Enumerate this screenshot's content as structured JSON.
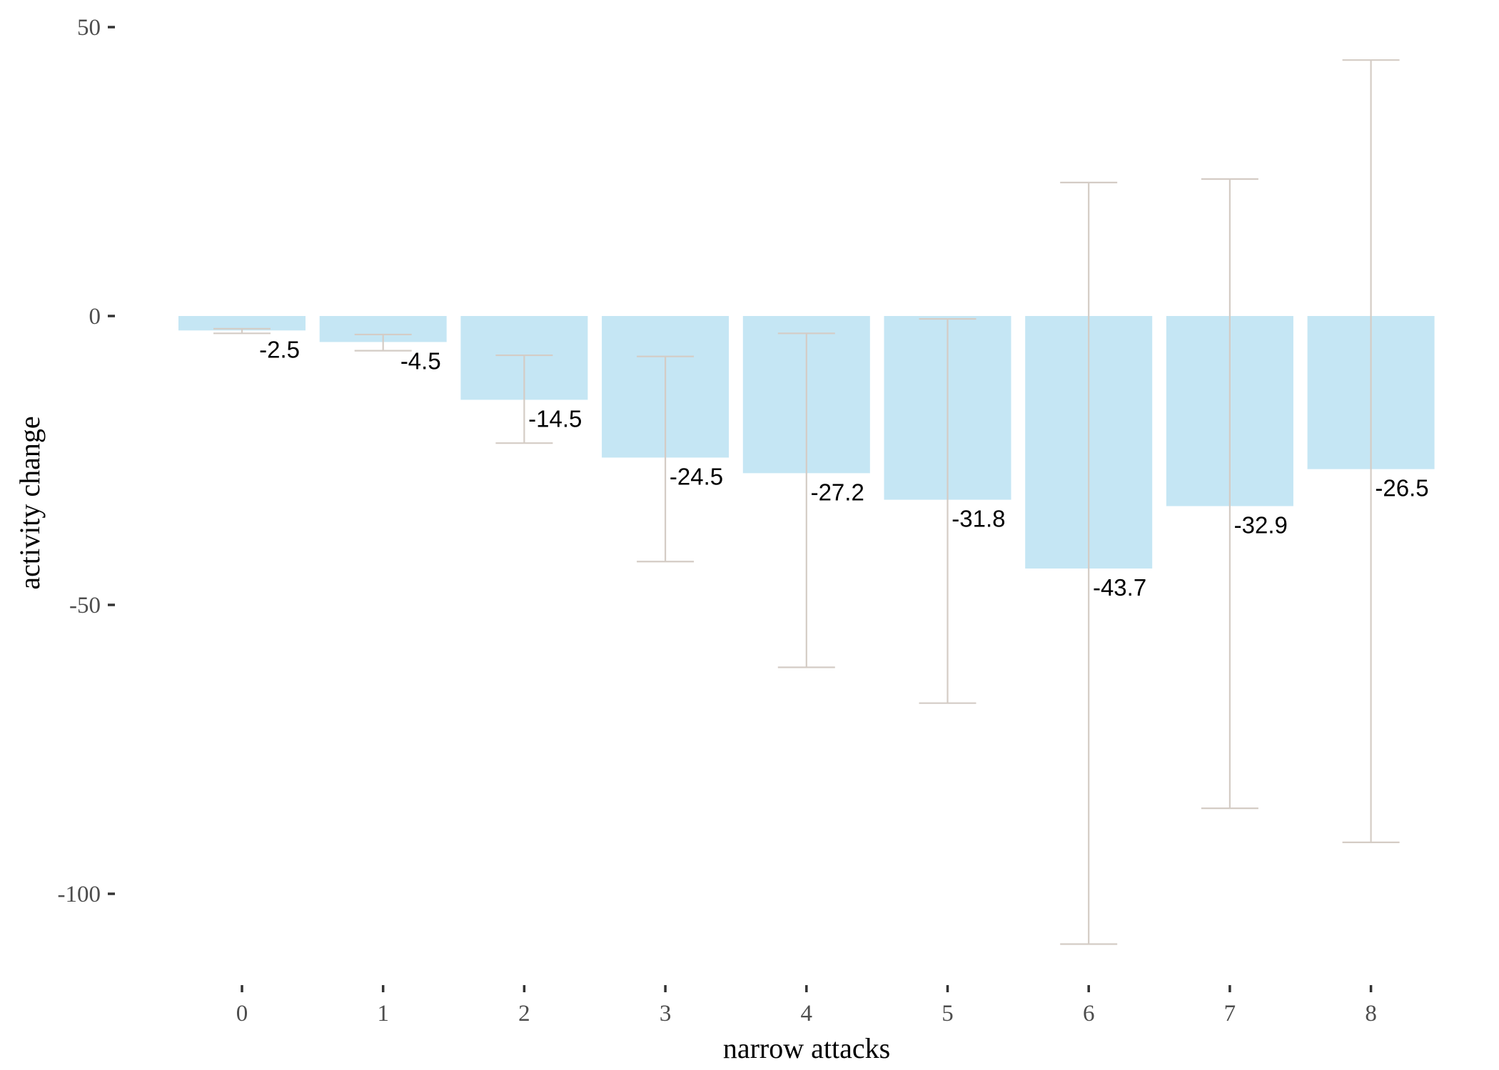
{
  "chart_data": {
    "type": "bar",
    "title": "",
    "xlabel": "narrow attacks",
    "ylabel": "activity change",
    "categories": [
      "0",
      "1",
      "2",
      "3",
      "4",
      "5",
      "6",
      "7",
      "8"
    ],
    "values": [
      -2.5,
      -4.5,
      -14.5,
      -24.5,
      -27.2,
      -31.8,
      -43.7,
      -32.9,
      -26.5
    ],
    "value_labels": [
      "-2.5",
      "-4.5",
      "-14.5",
      "-24.5",
      "-27.2",
      "-31.8",
      "-43.7",
      "-32.9",
      "-26.5"
    ],
    "error_low": [
      -3,
      -6,
      -22,
      -42.5,
      -60.8,
      -67,
      -108.7,
      -85.2,
      -91.1
    ],
    "error_high": [
      -2.2,
      -3.2,
      -6.8,
      -7,
      -3,
      -0.5,
      23.1,
      23.7,
      44.3
    ],
    "yticks": [
      50,
      0,
      -50,
      -100
    ],
    "ytick_labels": [
      "50",
      "0",
      "-50",
      "-100"
    ],
    "ylim": [
      -114,
      55
    ],
    "grid": false,
    "legend": "none",
    "colors": {
      "bar": "#c5e6f4",
      "error_bar": "#d4ccc5",
      "tick": "#333333",
      "tick_label": "#4d4d4d",
      "data_label": "#000000"
    }
  }
}
